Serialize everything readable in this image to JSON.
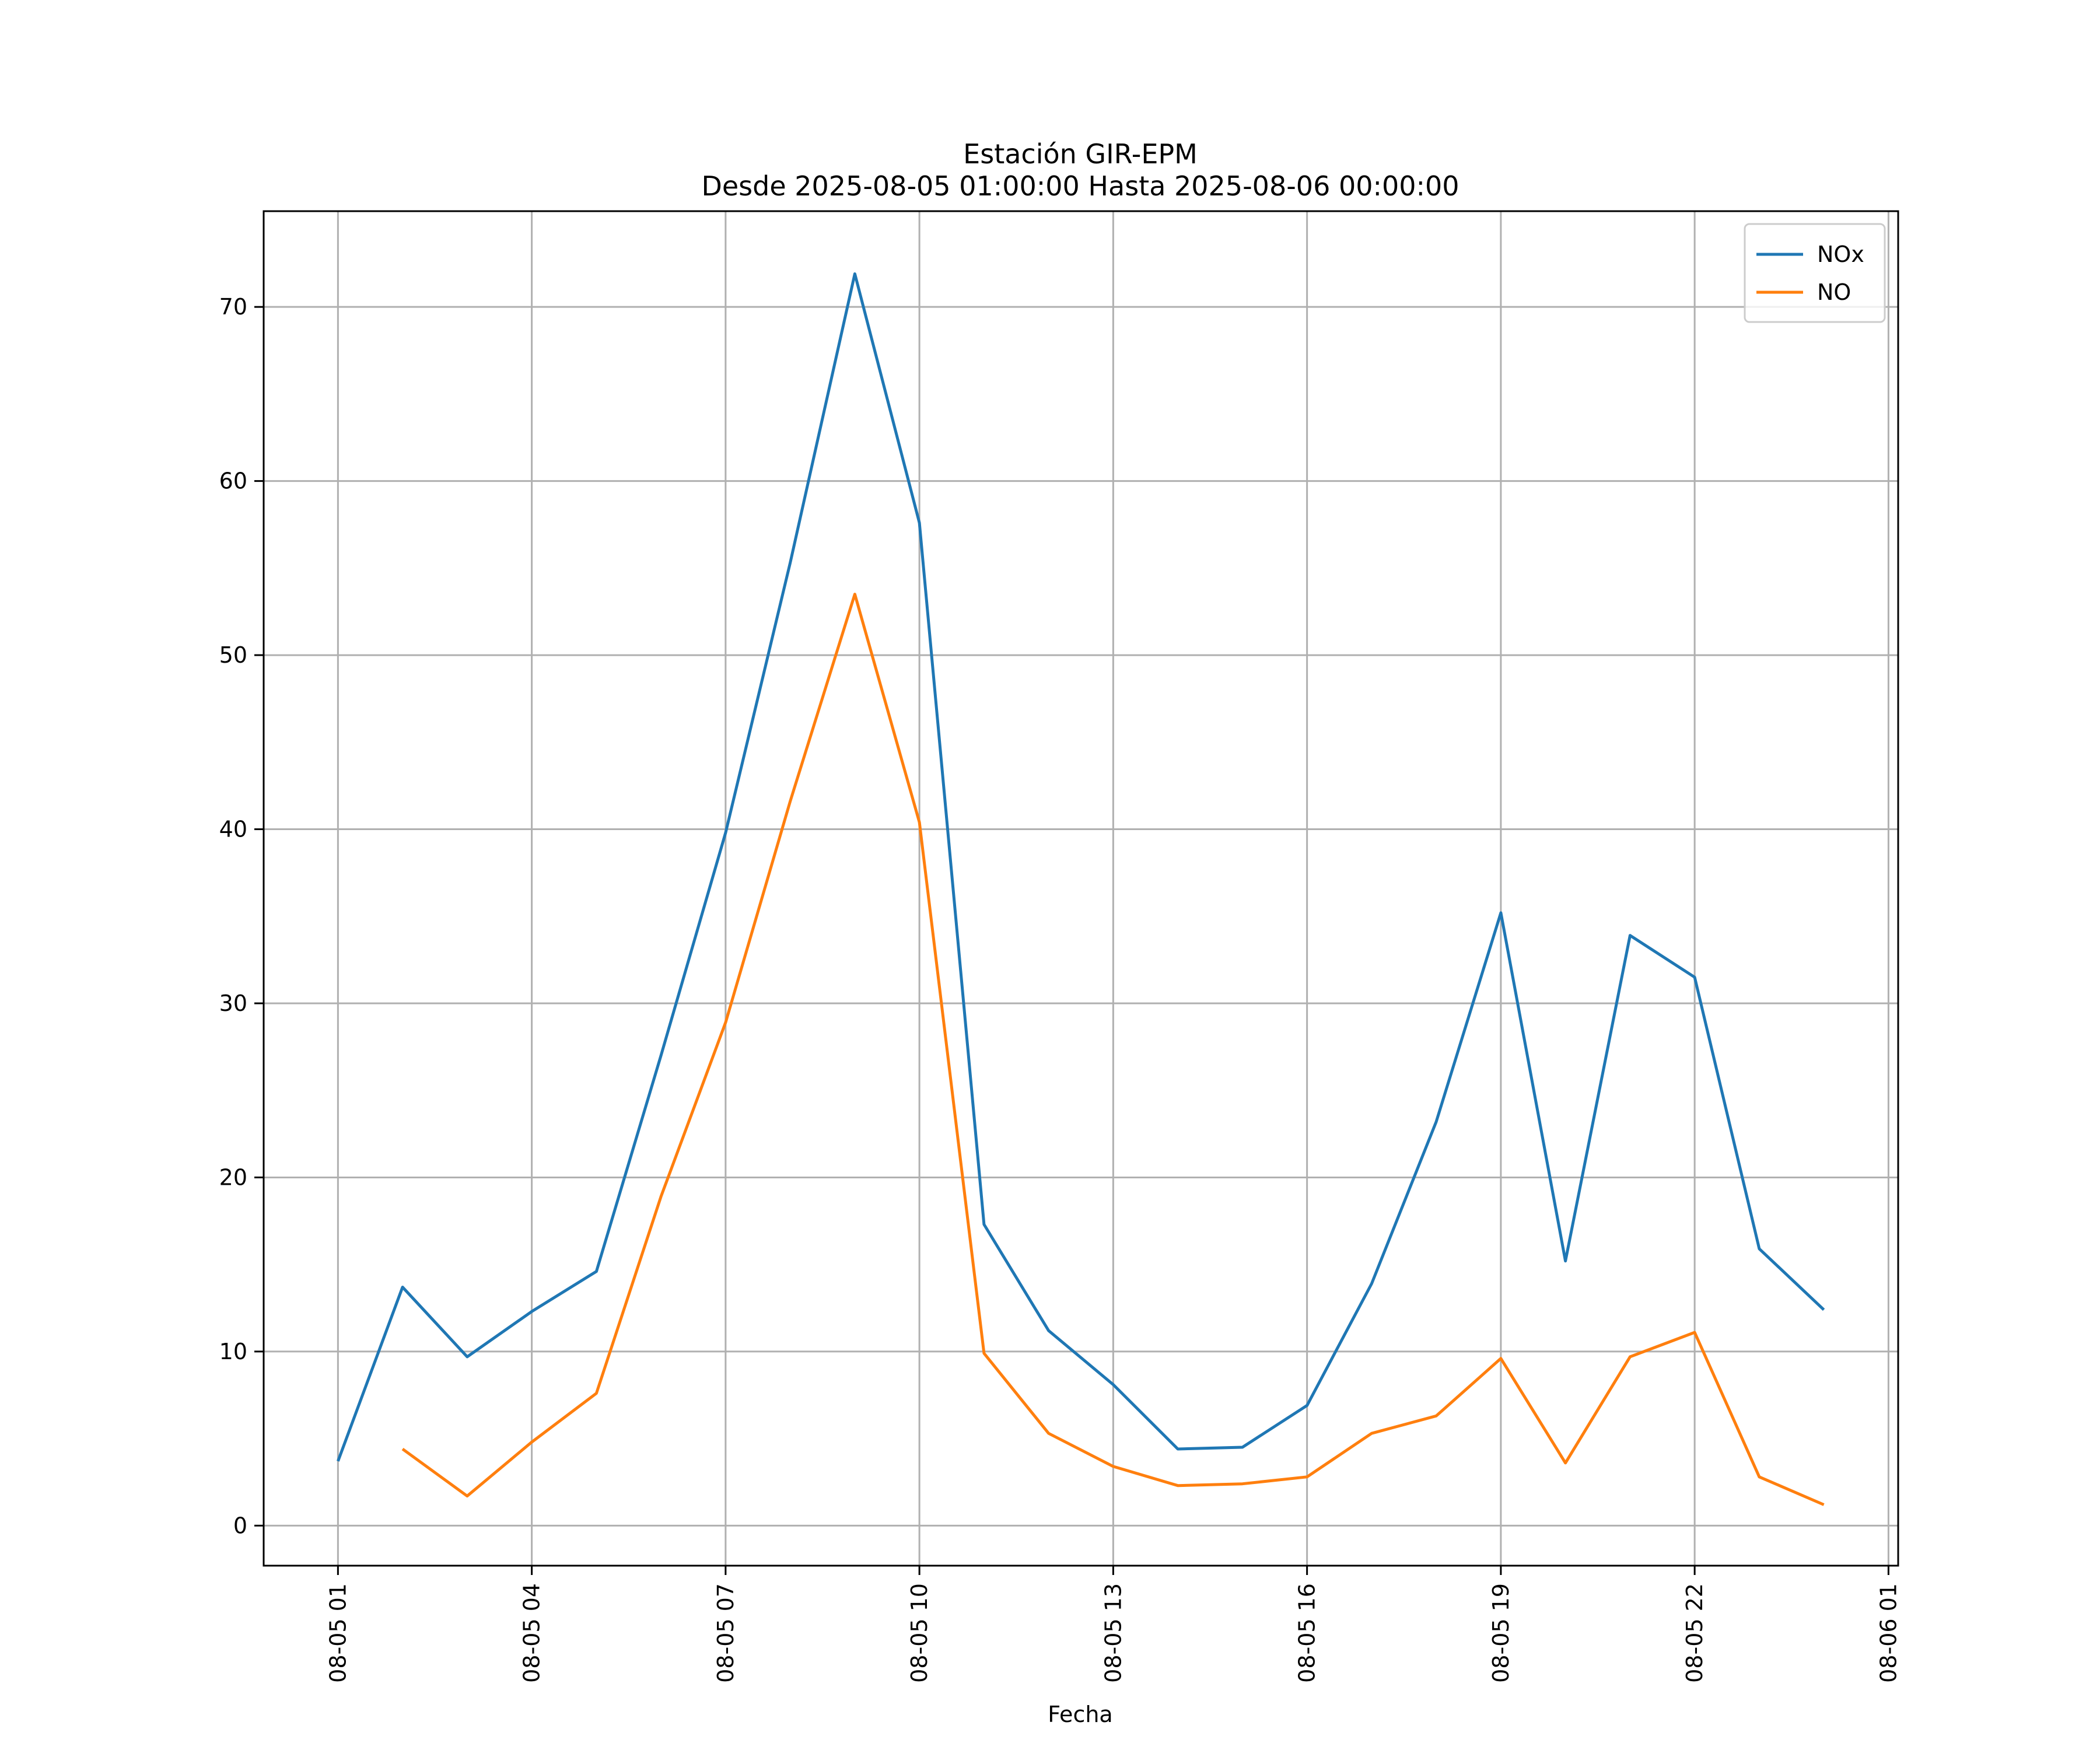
{
  "chart_data": {
    "type": "line",
    "title": "Estación GIR-EPM",
    "subtitle": "Desde 2025-08-05 01:00:00 Hasta 2025-08-06 00:00:00",
    "xlabel": "Fecha",
    "ylabel": "",
    "x": [
      "2025-08-05 01:00",
      "2025-08-05 02:00",
      "2025-08-05 03:00",
      "2025-08-05 04:00",
      "2025-08-05 05:00",
      "2025-08-05 06:00",
      "2025-08-05 07:00",
      "2025-08-05 08:00",
      "2025-08-05 09:00",
      "2025-08-05 10:00",
      "2025-08-05 11:00",
      "2025-08-05 12:00",
      "2025-08-05 13:00",
      "2025-08-05 14:00",
      "2025-08-05 15:00",
      "2025-08-05 16:00",
      "2025-08-05 17:00",
      "2025-08-05 18:00",
      "2025-08-05 19:00",
      "2025-08-05 20:00",
      "2025-08-05 21:00",
      "2025-08-05 22:00",
      "2025-08-05 23:00",
      "2025-08-06 00:00"
    ],
    "x_tick_labels": [
      "08-05 01",
      "08-05 04",
      "08-05 07",
      "08-05 10",
      "08-05 13",
      "08-05 16",
      "08-05 19",
      "08-05 22",
      "08-06 01"
    ],
    "x_tick_values": [
      "2025-08-05 01:00",
      "2025-08-05 04:00",
      "2025-08-05 07:00",
      "2025-08-05 10:00",
      "2025-08-05 13:00",
      "2025-08-05 16:00",
      "2025-08-05 19:00",
      "2025-08-05 22:00",
      "2025-08-06 01:00"
    ],
    "xlim": [
      "2025-08-04 23:51",
      "2025-08-06 01:09"
    ],
    "y_ticks": [
      0,
      10,
      20,
      30,
      40,
      50,
      60,
      70
    ],
    "ylim": [
      -2.3,
      75.5
    ],
    "grid": true,
    "legend_position": "top-right",
    "series": [
      {
        "name": "NOx",
        "color": "#1f77b4",
        "values": [
          3.7,
          13.7,
          9.7,
          12.3,
          14.6,
          27.0,
          39.8,
          55.3,
          71.9,
          57.6,
          17.3,
          11.2,
          8.1,
          4.4,
          4.5,
          6.9,
          13.9,
          23.2,
          35.2,
          15.2,
          33.9,
          31.5,
          15.9,
          12.4
        ]
      },
      {
        "name": "NO",
        "color": "#ff7f0e",
        "values": [
          null,
          4.4,
          1.7,
          4.8,
          7.6,
          18.9,
          28.9,
          41.6,
          53.5,
          40.4,
          9.9,
          5.3,
          3.4,
          2.3,
          2.4,
          2.8,
          5.3,
          6.3,
          9.6,
          3.6,
          9.7,
          11.1,
          2.8,
          1.2
        ]
      }
    ]
  }
}
